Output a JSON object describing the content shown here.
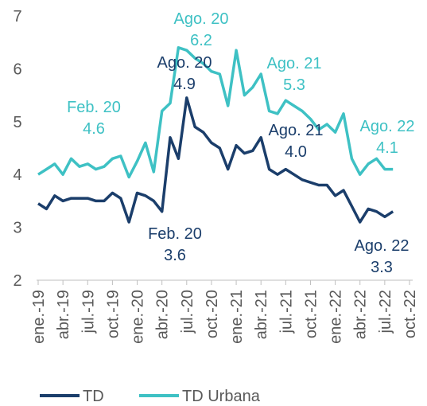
{
  "chart_data": {
    "type": "line",
    "categories": [
      "ene.-19",
      null,
      null,
      "abr.-19",
      null,
      null,
      "jul.-19",
      null,
      null,
      "oct.-19",
      null,
      null,
      "ene.-20",
      null,
      null,
      "abr.-20",
      null,
      null,
      "jul.-20",
      null,
      null,
      "oct.-20",
      null,
      null,
      "ene.-21",
      null,
      null,
      "abr.-21",
      null,
      null,
      "jul.-21",
      null,
      null,
      "oct.-21",
      null,
      null,
      "ene.-22",
      null,
      null,
      "abr.-22",
      null,
      null,
      "jul.-22",
      null,
      null,
      "oct.-22"
    ],
    "series": [
      {
        "name": "TD",
        "color": "#1b3e6b",
        "values": [
          3.45,
          3.35,
          3.6,
          3.5,
          3.55,
          3.55,
          3.55,
          3.5,
          3.5,
          3.65,
          3.55,
          3.1,
          3.65,
          3.6,
          3.5,
          3.3,
          4.7,
          4.3,
          5.45,
          4.9,
          4.8,
          4.6,
          4.5,
          4.1,
          4.55,
          4.4,
          4.45,
          4.7,
          4.1,
          4.0,
          4.1,
          4.0,
          3.9,
          3.85,
          3.8,
          3.8,
          3.6,
          3.7,
          3.4,
          3.1,
          3.35,
          3.3,
          3.2,
          3.3,
          null,
          null
        ]
      },
      {
        "name": "TD Urbana",
        "color": "#3ec1c4",
        "values": [
          4.0,
          4.1,
          4.2,
          4.0,
          4.3,
          4.15,
          4.2,
          4.1,
          4.15,
          4.3,
          4.35,
          3.95,
          4.25,
          4.6,
          4.05,
          5.2,
          5.35,
          6.4,
          6.35,
          6.2,
          6.1,
          5.95,
          5.9,
          5.3,
          6.35,
          5.5,
          5.65,
          5.9,
          5.2,
          5.15,
          5.4,
          5.3,
          5.2,
          5.05,
          4.85,
          4.95,
          4.8,
          5.15,
          4.3,
          4.0,
          4.2,
          4.3,
          4.1,
          4.1,
          null,
          null
        ]
      }
    ],
    "ylim": [
      2,
      7
    ],
    "yticks": [
      2,
      3,
      4,
      5,
      6,
      7
    ],
    "annotations": [
      {
        "series": 1,
        "lines": [
          "Feb. 20",
          "4.6"
        ]
      },
      {
        "series": 1,
        "lines": [
          "Ago. 20",
          "6.2"
        ]
      },
      {
        "series": 0,
        "lines": [
          "Ago. 20",
          "4.9"
        ]
      },
      {
        "series": 0,
        "lines": [
          "Feb. 20",
          "3.6"
        ]
      },
      {
        "series": 1,
        "lines": [
          "Ago. 21",
          "5.3"
        ]
      },
      {
        "series": 0,
        "lines": [
          "Ago. 21",
          "4.0"
        ]
      },
      {
        "series": 1,
        "lines": [
          "Ago. 22",
          "4.1"
        ]
      },
      {
        "series": 0,
        "lines": [
          "Ago. 22",
          "3.3"
        ]
      }
    ],
    "legend": "bottom"
  }
}
